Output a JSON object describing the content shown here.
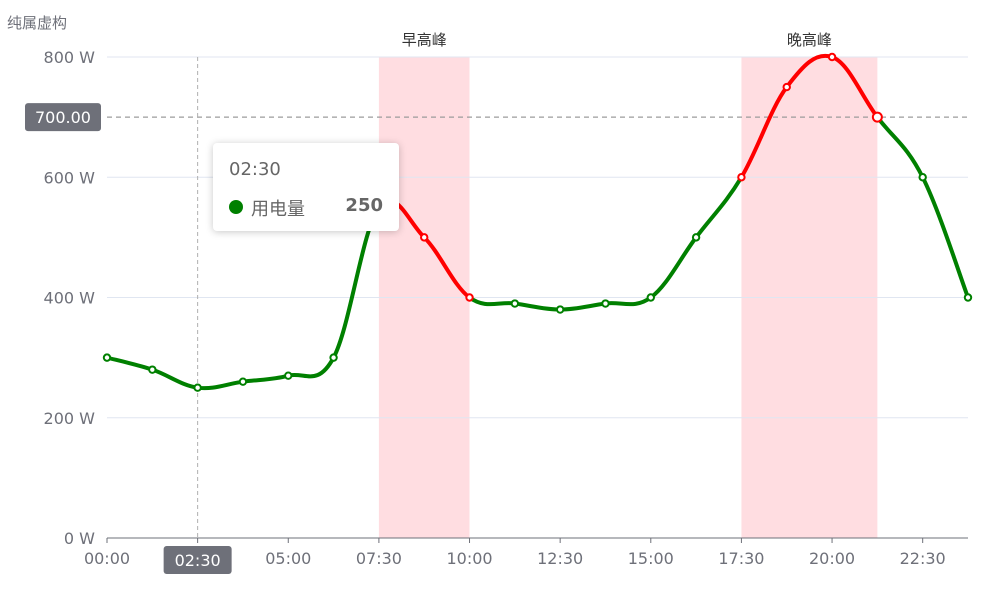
{
  "chart_data": {
    "type": "line",
    "ylabel": "纯属虚构",
    "x": [
      "00:00",
      "01:15",
      "02:30",
      "03:45",
      "05:00",
      "06:15",
      "07:30",
      "08:45",
      "10:00",
      "11:15",
      "12:30",
      "13:45",
      "15:00",
      "16:15",
      "17:30",
      "18:45",
      "20:00",
      "21:15",
      "22:30",
      "23:45"
    ],
    "xticks": [
      "00:00",
      "02:30",
      "05:00",
      "07:30",
      "10:00",
      "12:30",
      "15:00",
      "17:30",
      "20:00",
      "22:30"
    ],
    "ylim": [
      0,
      800
    ],
    "yticks": [
      0,
      200,
      400,
      600,
      800
    ],
    "ytick_labels": [
      "0 W",
      "200 W",
      "400 W",
      "600 W",
      "800 W"
    ],
    "series": [
      {
        "name": "用电量",
        "values": [
          300,
          280,
          250,
          260,
          270,
          300,
          550,
          500,
          400,
          390,
          380,
          390,
          400,
          500,
          600,
          750,
          800,
          700,
          600,
          400
        ]
      }
    ],
    "mark_areas": [
      {
        "label": "早高峰",
        "from": "07:30",
        "to": "10:00"
      },
      {
        "label": "晚高峰",
        "from": "17:30",
        "to": "21:15"
      }
    ],
    "threshold": {
      "value": 700,
      "label": "700.00"
    },
    "visual_map": {
      "above_or_in_peak_color": "#ff0000",
      "normal_color": "#008000",
      "band_color": "#ffdde1"
    },
    "grid": true,
    "pointer": {
      "x": "02:30",
      "label": "02:30"
    },
    "tooltip": {
      "title": "02:30",
      "series_name": "用电量",
      "value": "250"
    }
  }
}
